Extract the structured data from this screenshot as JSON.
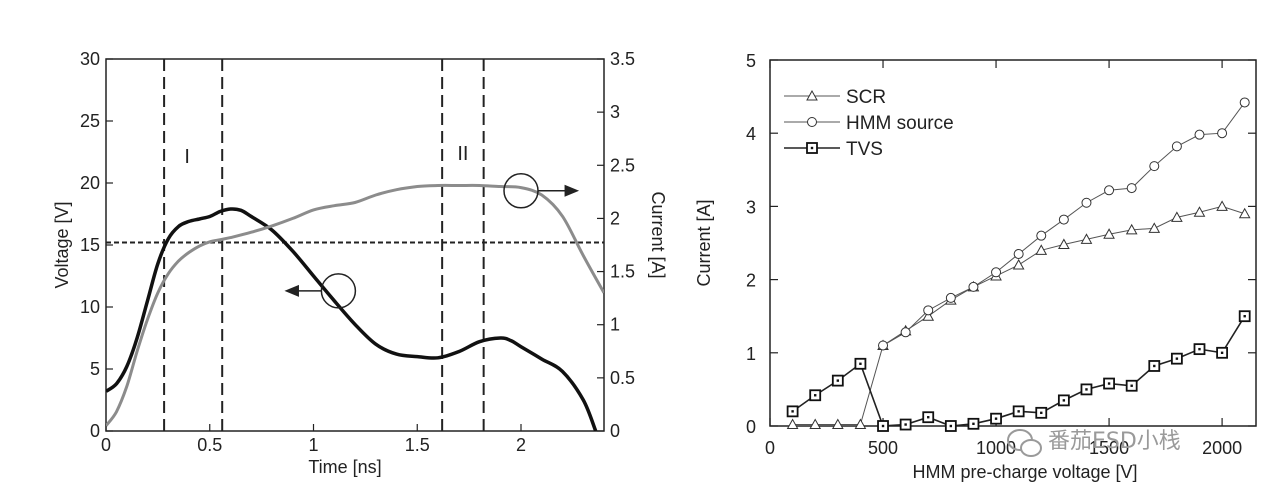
{
  "chart_data": [
    {
      "type": "line",
      "xlabel": "Time [ns]",
      "ylabel": "Voltage [V]",
      "y2label": "Current [A]",
      "xlim": [
        0,
        2.4
      ],
      "ylim": [
        0,
        30
      ],
      "y2lim": [
        0,
        3.5
      ],
      "x_ticks": [
        "0",
        "0.5",
        "1",
        "1.5",
        "2"
      ],
      "y_ticks": [
        "0",
        "5",
        "10",
        "15",
        "20",
        "25",
        "30"
      ],
      "y2_ticks": [
        "0",
        "0.5",
        "1",
        "1.5",
        "2",
        "2.5",
        "3",
        "3.5"
      ],
      "region_labels": [
        "I",
        "II"
      ],
      "series": [
        {
          "axis": "left",
          "color": "#111111",
          "x": [
            0,
            0.05,
            0.1,
            0.15,
            0.2,
            0.25,
            0.3,
            0.35,
            0.4,
            0.45,
            0.5,
            0.55,
            0.6,
            0.65,
            0.7,
            0.8,
            0.9,
            1.0,
            1.1,
            1.2,
            1.3,
            1.4,
            1.5,
            1.6,
            1.7,
            1.8,
            1.9,
            1.95,
            2.0,
            2.1,
            2.2,
            2.3,
            2.36
          ],
          "values": [
            3.2,
            3.8,
            5.2,
            7.5,
            10.5,
            13.5,
            15.5,
            16.5,
            16.9,
            17.1,
            17.3,
            17.7,
            17.9,
            17.8,
            17.3,
            16.2,
            14.5,
            12.5,
            10.5,
            8.6,
            7.0,
            6.2,
            6.0,
            5.9,
            6.4,
            7.2,
            7.5,
            7.3,
            6.8,
            5.8,
            4.8,
            2.5,
            0
          ]
        },
        {
          "axis": "right",
          "color": "#8c8c8c",
          "x": [
            0,
            0.05,
            0.1,
            0.15,
            0.2,
            0.25,
            0.3,
            0.35,
            0.4,
            0.45,
            0.5,
            0.55,
            0.6,
            0.7,
            0.8,
            0.9,
            1.0,
            1.1,
            1.2,
            1.3,
            1.4,
            1.5,
            1.6,
            1.7,
            1.8,
            1.9,
            2.0,
            2.1,
            2.2,
            2.3,
            2.4
          ],
          "values": [
            0.05,
            0.18,
            0.42,
            0.75,
            1.05,
            1.3,
            1.48,
            1.6,
            1.68,
            1.74,
            1.78,
            1.8,
            1.82,
            1.87,
            1.93,
            2.0,
            2.08,
            2.12,
            2.15,
            2.22,
            2.27,
            2.3,
            2.31,
            2.31,
            2.31,
            2.3,
            2.29,
            2.22,
            2.02,
            1.65,
            1.3
          ]
        }
      ],
      "threshold_y": 15.2,
      "dashed_x": [
        0.28,
        0.56,
        1.62,
        1.82
      ]
    },
    {
      "type": "line",
      "xlabel": "HMM pre-charge voltage [V]",
      "ylabel": "Current [A]",
      "xlim": [
        0,
        2150
      ],
      "ylim": [
        0,
        5
      ],
      "x_ticks": [
        "0",
        "500",
        "1000",
        "1500",
        "2000"
      ],
      "y_ticks": [
        "0",
        "1",
        "2",
        "3",
        "4",
        "5"
      ],
      "series": [
        {
          "name": "SCR",
          "marker": "triangle",
          "x": [
            100,
            200,
            300,
            400,
            500,
            600,
            700,
            800,
            900,
            1000,
            1100,
            1200,
            1300,
            1400,
            1500,
            1600,
            1700,
            1800,
            1900,
            2000,
            2100
          ],
          "values": [
            0.02,
            0.02,
            0.02,
            0.02,
            1.1,
            1.3,
            1.5,
            1.72,
            1.9,
            2.05,
            2.2,
            2.4,
            2.48,
            2.55,
            2.62,
            2.68,
            2.7,
            2.85,
            2.92,
            3.0,
            2.9
          ]
        },
        {
          "name": "HMM source",
          "marker": "circle",
          "x": [
            500,
            600,
            700,
            800,
            900,
            1000,
            1100,
            1200,
            1300,
            1400,
            1500,
            1600,
            1700,
            1800,
            1900,
            2000,
            2100
          ],
          "values": [
            1.1,
            1.28,
            1.58,
            1.75,
            1.9,
            2.1,
            2.35,
            2.6,
            2.82,
            3.05,
            3.22,
            3.25,
            3.55,
            3.82,
            3.98,
            4.0,
            4.42
          ]
        },
        {
          "name": "TVS",
          "marker": "square",
          "x": [
            100,
            200,
            300,
            400,
            500,
            600,
            700,
            800,
            900,
            1000,
            1100,
            1200,
            1300,
            1400,
            1500,
            1600,
            1700,
            1800,
            1900,
            2000,
            2100
          ],
          "values": [
            0.2,
            0.42,
            0.62,
            0.85,
            0.0,
            0.02,
            0.12,
            0.0,
            0.03,
            0.1,
            0.2,
            0.18,
            0.35,
            0.5,
            0.58,
            0.55,
            0.82,
            0.92,
            1.05,
            1.0,
            1.5
          ]
        }
      ],
      "legend": "top-left"
    }
  ],
  "watermark": "番茄ESD小栈"
}
